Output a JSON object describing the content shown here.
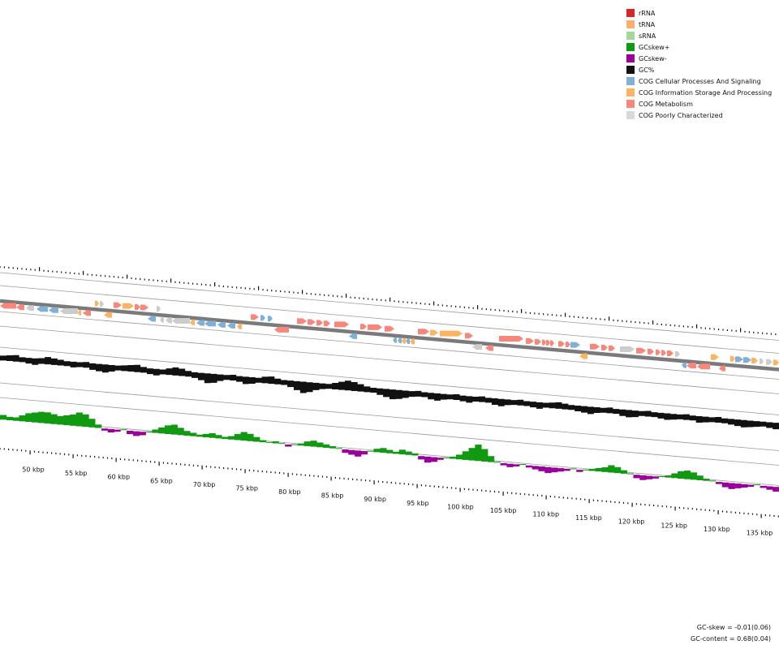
{
  "legend": [
    {
      "label": "rRNA",
      "color": "#d62728"
    },
    {
      "label": "tRNA",
      "color": "#fdae6b"
    },
    {
      "label": "sRNA",
      "color": "#a1d99b"
    },
    {
      "label": "GCskew+",
      "color": "#119911"
    },
    {
      "label": "GCskew-",
      "color": "#990099"
    },
    {
      "label": "GC%",
      "color": "#111111"
    },
    {
      "label": "COG Cellular Processes And Signaling",
      "color": "#7fb0d6"
    },
    {
      "label": "COG Information Storage And Processing",
      "color": "#fdb462"
    },
    {
      "label": "COG Metabolism",
      "color": "#f8877b"
    },
    {
      "label": "COG Poorly Characterized",
      "color": "#d9d9d9"
    }
  ],
  "axis": {
    "ticks_kbp": [
      50,
      55,
      60,
      65,
      70,
      75,
      80,
      85,
      90,
      95,
      100,
      105,
      110,
      115,
      120,
      125,
      130,
      135
    ],
    "labels": [
      "50 kbp",
      "55 kbp",
      "60 kbp",
      "65 kbp",
      "70 kbp",
      "75 kbp",
      "80 kbp",
      "85 kbp",
      "90 kbp",
      "95 kbp",
      "100 kbp",
      "105 kbp",
      "110 kbp",
      "115 kbp",
      "120 kbp",
      "125 kbp",
      "130 kbp",
      "135 kbp"
    ]
  },
  "stats": {
    "gc_skew": "GC-skew = -0.01(0.06)",
    "gc_content": "GC-content = 0.68(0.04)"
  }
}
